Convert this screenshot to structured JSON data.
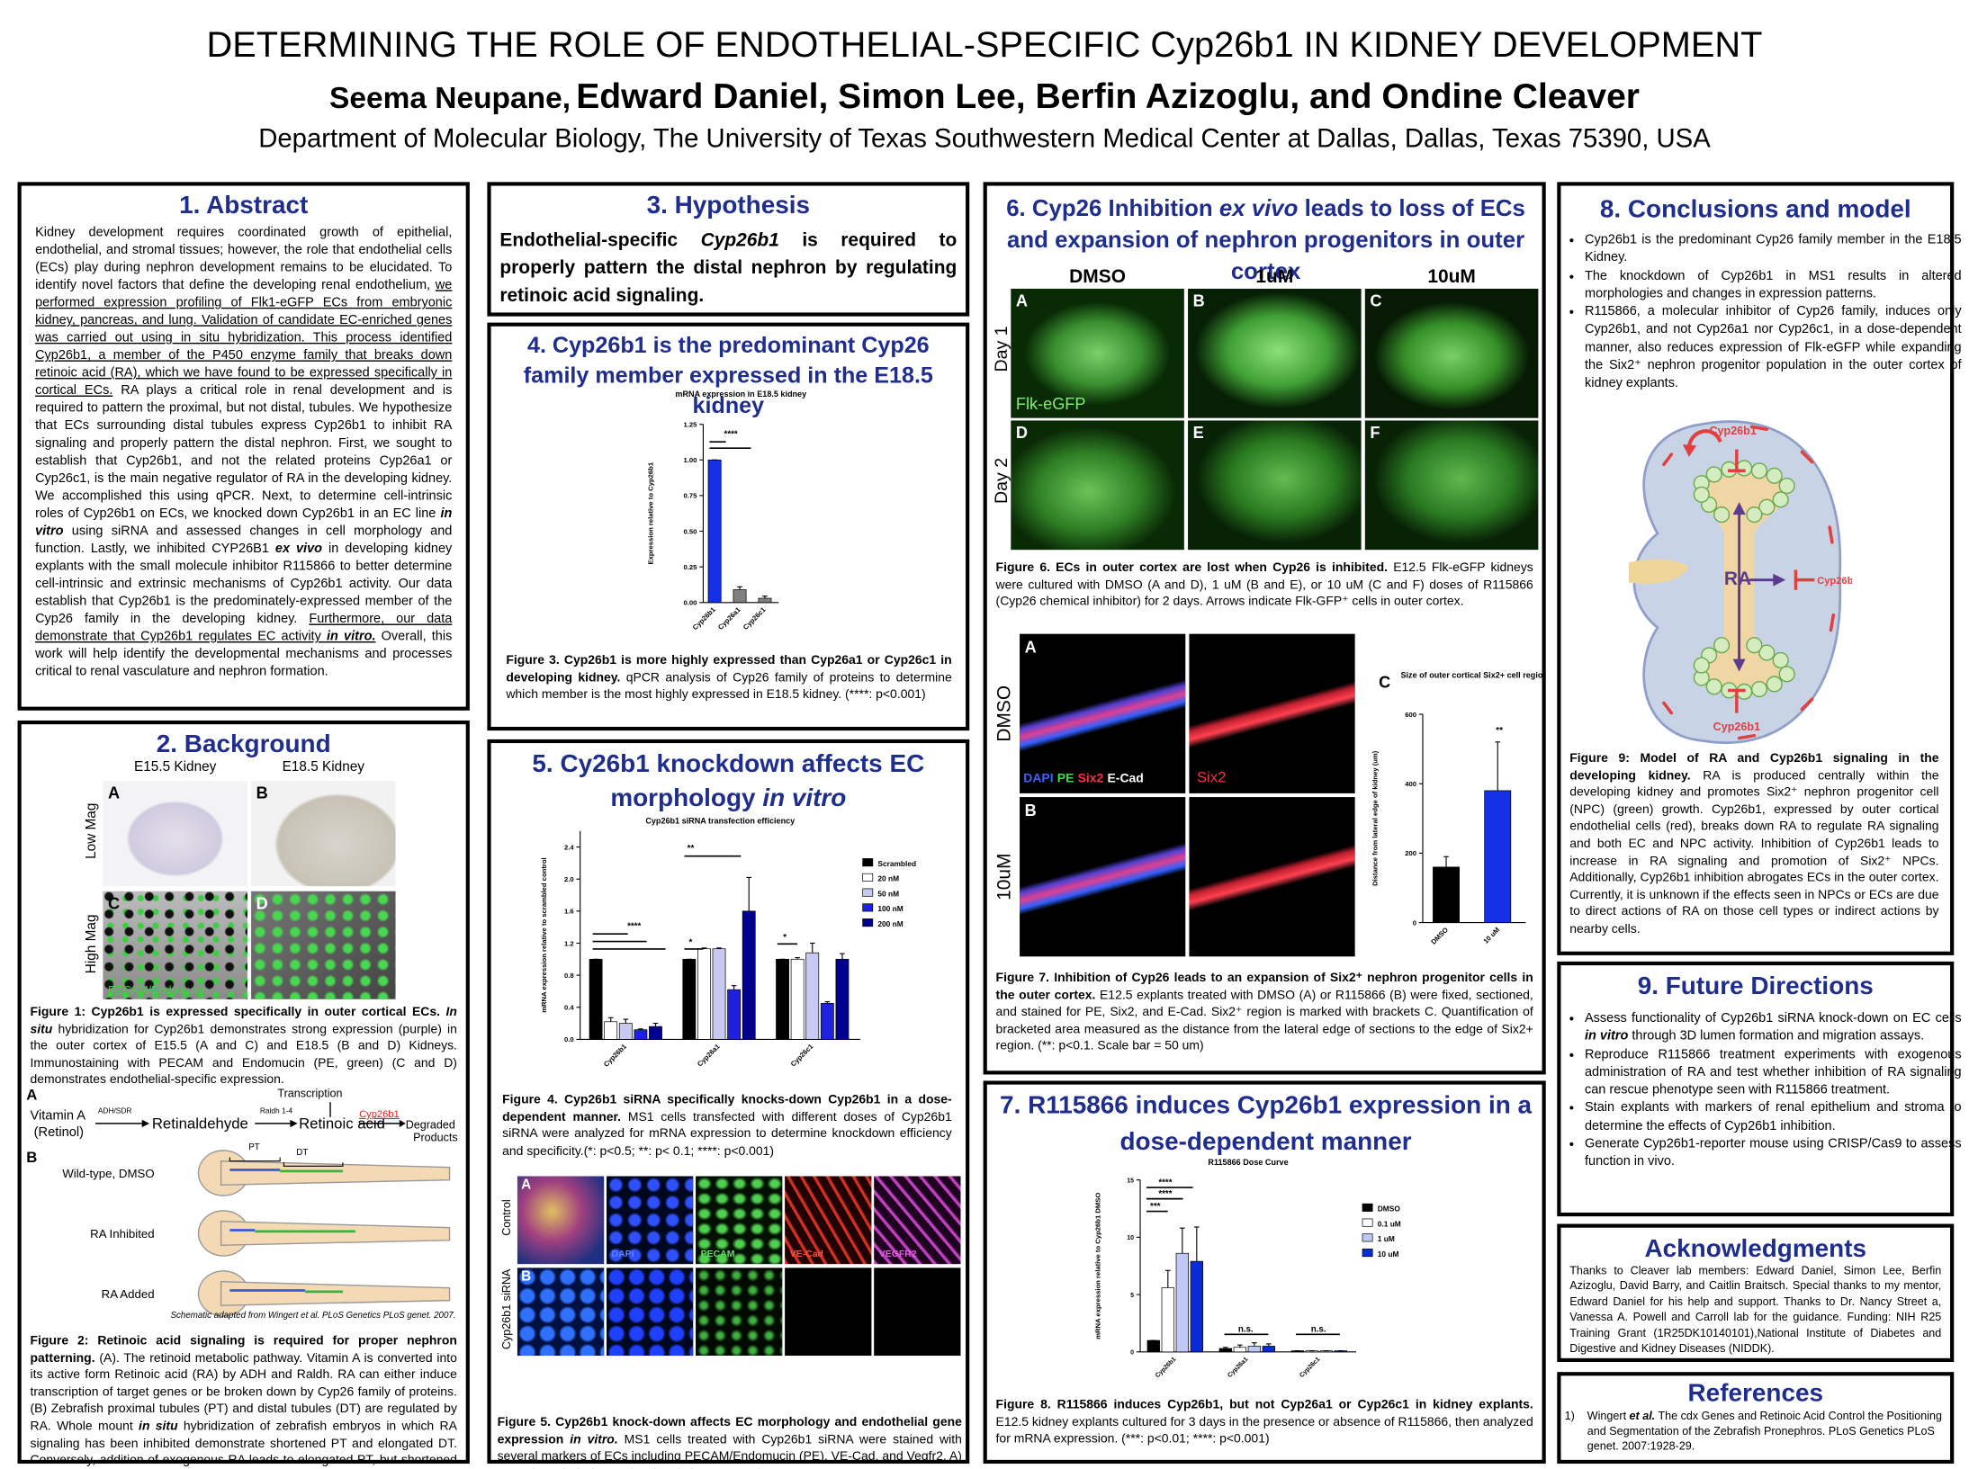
{
  "header": {
    "title": "DETERMINING THE ROLE OF ENDOTHELIAL-SPECIFIC Cyp26b1 IN KIDNEY DEVELOPMENT",
    "authors": [
      "Seema Neupane,",
      "Edward Daniel, Simon Lee, Berfin Azizoglu, and Ondine Cleaver"
    ],
    "affiliation": "Department of Molecular Biology, The University of Texas Southwestern Medical Center at Dallas, Dallas, Texas 75390, USA"
  },
  "abstract": {
    "heading": "1. Abstract",
    "text": [
      "Kidney development requires coordinated growth of epithelial, endothelial, and stromal tissues; however, the role that endothelial cells (ECs) play during nephron development remains to be elucidated. To identify novel factors that define the developing renal endothelium, ",
      "we performed expression profiling of Flk1-eGFP ECs from embryonic kidney, pancreas, and lung. Validation of candidate EC-enriched genes was carried out using in situ hybridization. This process identified Cyp26b1, a member of the P450 enzyme family that breaks down retinoic acid (RA), which we have found to be expressed specifically in cortical ECs.",
      " RA plays a critical role in renal development and is required to pattern the proximal, but not distal, tubules. We hypothesize that ECs surrounding distal tubules express Cyp26b1 to inhibit RA signaling and properly pattern the distal nephron. First, we sought to establish that Cyp26b1, and not the related proteins Cyp26a1 or Cyp26c1, is the main negative regulator of RA in the developing kidney. We accomplished this using qPCR. Next, to determine cell-intrinsic roles of Cyp26b1 on ECs, we knocked down Cyp26b1 in an EC line ",
      "in vitro",
      " using siRNA and assessed changes in cell morphology and function. Lastly, we inhibited CYP26B1 ",
      "ex vivo",
      " in developing kidney explants with the small molecule inhibitor R115866 to better determine cell-intrinsic and extrinsic mechanisms of Cyp26b1 activity. Our data establish that Cyp26b1 is the predominately-expressed member of the Cyp26 family in the developing kidney. ",
      "Furthermore, our data demonstrate that Cyp26b1 regulates EC activity ",
      "in vitro.",
      " Overall, this work will help identify the developmental mechanisms and processes critical to renal vasculature and nephron formation."
    ]
  },
  "background": {
    "heading": "2. Background",
    "fig1": {
      "columns": [
        "E15.5 Kidney",
        "E18.5 Kidney"
      ],
      "rows": [
        "Low Mag",
        "High Mag"
      ],
      "panels": [
        "A",
        "B",
        "C",
        "D"
      ],
      "stain": "PECAM/Endomucin",
      "caption": [
        "Figure 1: Cyp26b1 is expressed specifically in outer cortical ECs. ",
        "In situ",
        " hybridization for Cyp26b1 demonstrates strong expression (purple) in the outer cortex of E15.5 (A and C) and E18.5 (B and D) Kidneys. Immunostaining with PECAM and Endomucin (PE, green) (C and D) demonstrates endothelial-specific expression."
      ]
    },
    "pathway": {
      "panel": "A",
      "vitamin_a": "Vitamin A",
      "retinol": "(Retinol)",
      "enzyme1": "ADH/SDR",
      "retinaldehyde": "Retinaldehyde",
      "enzyme2": "Raldh 1-4",
      "transcription": "Transcription",
      "retinoic_acid": "Retinoic acid",
      "cyp": "Cyp26b1",
      "degraded": "Degraded",
      "products": "Products"
    },
    "zebrafish": {
      "panel": "B",
      "pt": "PT",
      "dt": "DT",
      "conditions": [
        "Wild-type, DMSO",
        "RA Inhibited",
        "RA Added"
      ],
      "credit": "Schematic adapted from Wingert et al. PLoS Genetics PLoS genet. 2007."
    },
    "fig2_caption": [
      "Figure 2: Retinoic acid signaling is required for proper nephron patterning.",
      " (A). The retinoid metabolic pathway. Vitamin A is converted into its active form Retinoic acid (RA) by ADH and Raldh. RA can either induce transcription of target genes or be broken down by Cyp26 family of proteins. (B) Zebrafish proximal tubules (PT) and distal tubules (DT) are regulated by RA. Whole mount ",
      "in situ",
      " hybridization of zebrafish embryos in which RA signaling has been inhibited demonstrate shortened PT and elongated DT. Conversely, addition of exogenous RA leads to elongated PT, but shortened DT."
    ]
  },
  "hypothesis": {
    "heading": "3. Hypothesis",
    "text": [
      "Endothelial-specific ",
      "Cyp26b1",
      " is required to properly pattern the distal nephron by regulating retinoic acid signaling."
    ]
  },
  "section4": {
    "heading": "4. Cyp26b1 is the predominant Cyp26 family member expressed in the E18.5 kidney",
    "chart": {
      "type": "bar",
      "title": "mRNA expression in E18.5 kidney",
      "y_label": "Expression relative to Cyp26b1",
      "categories": [
        "Cyp26b1",
        "Cyp26a1",
        "Cyp26c1"
      ],
      "values": [
        1.0,
        0.09,
        0.03
      ],
      "errors": [
        0.0,
        0.02,
        0.015
      ],
      "colors": [
        "#1430e6",
        "#808080",
        "#808080"
      ],
      "ylim": [
        0,
        1.25
      ],
      "yticks": [
        {
          "value": 0,
          "label": "0.00"
        },
        0.25,
        {
          "value": 0.5,
          "label": "0.50"
        },
        0.75,
        {
          "value": 1,
          "label": "1.00"
        },
        1.25
      ],
      "annotations": [
        "****"
      ]
    },
    "caption": [
      "Figure 3. Cyp26b1 is more highly expressed than Cyp26a1 or Cyp26c1 in developing kidney.",
      " qPCR analysis of Cyp26 family of proteins to determine which member is the most highly expressed in E18.5 kidney. (****: p<0.001)"
    ]
  },
  "section5": {
    "heading": [
      "5. Cy26b1 knockdown affects EC morphology ",
      "in vitro"
    ],
    "chart": {
      "type": "bar",
      "title": "Cyp26b1 siRNA transfection efficiency",
      "y_label": "mRNA expression relative to scrambled control",
      "categories": [
        "Cyp26b1",
        "Cyp26a1",
        "Cyp26c1"
      ],
      "series": [
        {
          "name": "Scrambled",
          "color": "#000000",
          "values": [
            1.0,
            1.0,
            1.0
          ],
          "errors": [
            0,
            0,
            0
          ]
        },
        {
          "name": "20 nM",
          "color": "#ffffff",
          "values": [
            0.22,
            1.13,
            1.0
          ],
          "errors": [
            0.05,
            0.01,
            0.02
          ]
        },
        {
          "name": "50 nM",
          "color": "#c8c8f0",
          "values": [
            0.2,
            1.13,
            1.08
          ],
          "errors": [
            0.05,
            0.01,
            0.12
          ]
        },
        {
          "name": "100 nM",
          "color": "#2020e0",
          "values": [
            0.12,
            0.62,
            0.45
          ],
          "errors": [
            0.01,
            0.05,
            0.02
          ]
        },
        {
          "name": "200 nM",
          "color": "#000090",
          "values": [
            0.16,
            1.6,
            1.0
          ],
          "errors": [
            0.04,
            0.42,
            0.07
          ]
        }
      ],
      "ylim": [
        0,
        2.6
      ],
      "yticks": [
        {
          "value": 0,
          "label": "0.0"
        },
        0.4,
        0.8,
        1.2,
        1.6,
        {
          "value": 2,
          "label": "2.0"
        },
        2.4
      ],
      "annotations": [
        "****",
        "*",
        "**",
        "*"
      ]
    },
    "caption": [
      "Figure 4. Cyp26b1 siRNA specifically knocks-down Cyp26b1 in a dose-dependent manner.",
      " MS1 cells transfected with different doses of Cyp26b1 siRNA were analyzed for mRNA expression to determine knockdown efficiency and specificity.(*: p<0.5; **: p< 0.1; ****: p<0.001)"
    ],
    "images": {
      "rows": [
        {
          "panel": "A",
          "label": "Control"
        },
        {
          "panel": "B",
          "label": "Cyp26b1 siRNA"
        }
      ],
      "stains": [
        "DAPI",
        "PECAM",
        "VE-Cad",
        "VEGFR2"
      ]
    },
    "fig5_caption": [
      "Figure 5. Cyp26b1 knock-down affects EC morphology and endothelial gene expression ",
      "in vitro.",
      " MS1 cells treated with Cyp26b1 siRNA were stained with several markers of ECs including PECAM/Endomucin (PE), VE-Cad, and Vegfr2. A) controls and B) siCyp26b1. (Scale bar = 50 um)"
    ]
  },
  "section6": {
    "heading": [
      "6. Cyp26 Inhibition ",
      "ex vivo",
      " leads to loss of ECs and expansion of nephron progenitors in outer cortex"
    ],
    "images": {
      "columns": [
        "DMSO",
        "1uM",
        "10uM"
      ],
      "rows": [
        "Day 1",
        "Day 2"
      ],
      "panels": [
        "A",
        "B",
        "C",
        "D",
        "E",
        "F"
      ],
      "stain": "Flk-eGFP"
    },
    "fig6_caption": [
      "Figure 6. ECs in outer cortex are lost when Cyp26 is inhibited.",
      " E12.5 Flk-eGFP kidneys were cultured with DMSO (A and D), 1 uM (B and E), or 10 uM (C and F) doses of R115866 (Cyp26 chemical inhibitor) for 2 days. Arrows indicate Flk-GFP⁺ cells in outer cortex."
    ],
    "fig7": {
      "panels": [
        "A",
        "B"
      ],
      "rows": [
        "DMSO",
        "10uM"
      ],
      "stains": [
        "DAPI",
        "PE",
        "Six2",
        "E-Cad"
      ],
      "stain2": "Six2",
      "chart_panel": "C",
      "chart": {
        "type": "bar",
        "title": "Size of outer cortical Six2+ cell region",
        "y_label": "Distance from lateral edge of kidney (um)",
        "categories": [
          "DMSO",
          "10 uM"
        ],
        "values": [
          160,
          380
        ],
        "errors": [
          30,
          140
        ],
        "colors": [
          "#000000",
          "#1430e6"
        ],
        "ylim": [
          0,
          600
        ],
        "yticks": [
          0,
          200,
          400,
          600
        ],
        "annotations": [
          "**"
        ]
      },
      "caption": [
        "Figure 7. Inhibition of Cyp26 leads to an expansion of Six2⁺ nephron progenitor cells in the outer cortex.",
        " E12.5 explants treated with DMSO (A) or R115866 (B) were fixed, sectioned, and stained for PE, Six2, and E-Cad. Six2⁺ region is marked with brackets C. Quantification of bracketed area measured as the distance from the lateral edge of sections to the edge of Six2+ region. (**: p<0.1. Scale bar = 50 um)"
      ]
    }
  },
  "section7": {
    "heading": "7. R115866 induces Cyp26b1 expression in a dose-dependent manner",
    "chart": {
      "type": "bar",
      "title": "R115866 Dose Curve",
      "y_label": "mRNA expression relative to Cyp26b1 DMSO",
      "categories": [
        "Cyp26b1",
        "Cyp26a1",
        "Cyp26c1"
      ],
      "series": [
        {
          "name": "DMSO",
          "color": "#000000",
          "values": [
            1.0,
            0.3,
            0.1
          ],
          "errors": [
            0,
            0.1,
            0
          ]
        },
        {
          "name": "0.1 uM",
          "color": "#ffffff",
          "values": [
            5.6,
            0.4,
            0.1
          ],
          "errors": [
            1.5,
            0.2,
            0
          ]
        },
        {
          "name": "1 uM",
          "color": "#c0c8f8",
          "values": [
            8.6,
            0.5,
            0.1
          ],
          "errors": [
            2.2,
            0.3,
            0
          ]
        },
        {
          "name": "10 uM",
          "color": "#0a2ad8",
          "values": [
            7.9,
            0.5,
            0.1
          ],
          "errors": [
            3.0,
            0.2,
            0
          ]
        }
      ],
      "ylim": [
        0,
        15
      ],
      "yticks": [
        0,
        5,
        10,
        15
      ],
      "annotations": [
        "***",
        "****",
        "****",
        "n.s.",
        "n.s."
      ]
    },
    "caption": [
      "Figure 8. R115866 induces Cyp26b1, but not Cyp26a1 or Cyp26c1 in kidney explants.",
      " E12.5 kidney explants cultured for 3 days in the presence or absence of R115866, then analyzed for mRNA expression. (***: p<0.01; ****: p<0.001)"
    ]
  },
  "section8": {
    "heading": "8. Conclusions and model",
    "bullets": [
      "Cyp26b1 is the predominant Cyp26 family member in the E18.5 Kidney.",
      "The knockdown of Cyp26b1 in MS1 results in altered morphologies and changes in expression patterns.",
      "R115866, a molecular inhibitor of Cyp26 family, induces only Cyp26b1, and not Cyp26a1 nor Cyp26c1, in a dose-dependent manner, also reduces expression of Flk-eGFP while expanding the Six2⁺ nephron progenitor population in the outer cortex of kidney explants."
    ],
    "model": {
      "cyp_top": "Cyp26b1",
      "ra": "RA",
      "cyp_right": "Cyp26b1",
      "cyp_bottom": "Cyp26b1"
    },
    "caption": [
      "Figure 9: Model of RA and Cyp26b1 signaling in the developing kidney.",
      " RA is produced centrally within the developing kidney and promotes Six2⁺ nephron progenitor cell (NPC) (green) growth. Cyp26b1, expressed by outer cortical endothelial cells (red), breaks down RA to regulate RA signaling and both EC and NPC activity. Inhibition of Cyp26b1 leads to increase in RA signaling and promotion of Six2⁺ NPCs. Additionally, Cyp26b1 inhibition abrogates ECs in the outer cortex. Currently, it is unknown if the effects seen in NPCs or ECs are due to direct actions of RA on those cell types or indirect actions by nearby cells."
    ]
  },
  "section9": {
    "heading": "9. Future Directions",
    "bullets": [
      [
        "Assess functionality of Cyp26b1 siRNA knock-down on EC cells ",
        "in vitro",
        " through 3D lumen formation and migration assays."
      ],
      [
        "Reproduce R115866 treatment experiments with exogenous administration of RA and test whether inhibition of RA signaling can rescue phenotype seen with R115866 treatment."
      ],
      [
        "Stain explants with markers of renal epithelium and stroma to determine the effects of Cyp26b1 inhibition."
      ],
      [
        "Generate Cyp26b1-reporter mouse using CRISP/Cas9 to assess function in vivo."
      ]
    ]
  },
  "acknowledgments": {
    "heading": "Acknowledgments",
    "text": "Thanks to Cleaver lab members:  Edward Daniel, Simon Lee, Berfin Azizoglu, David Barry, and Caitlin Braitsch. Special thanks to my mentor, Edward Daniel for his help and support. Thanks to  Dr. Nancy Street a, Vanessa A. Powell and Carroll lab for the guidance. Funding: NIH R25 Training Grant (1R25DK10140101),National Institute of Diabetes and Digestive and Kidney Diseases (NIDDK)."
  },
  "references": {
    "heading": "References",
    "items": [
      {
        "number": "1)",
        "text": [
          "Wingert ",
          "et al.",
          " The cdx Genes and Retinoic Acid Control the Positioning and Segmentation of the Zebrafish Pronephros. PLoS Genetics PLoS genet. 2007:1928-29."
        ]
      }
    ]
  }
}
